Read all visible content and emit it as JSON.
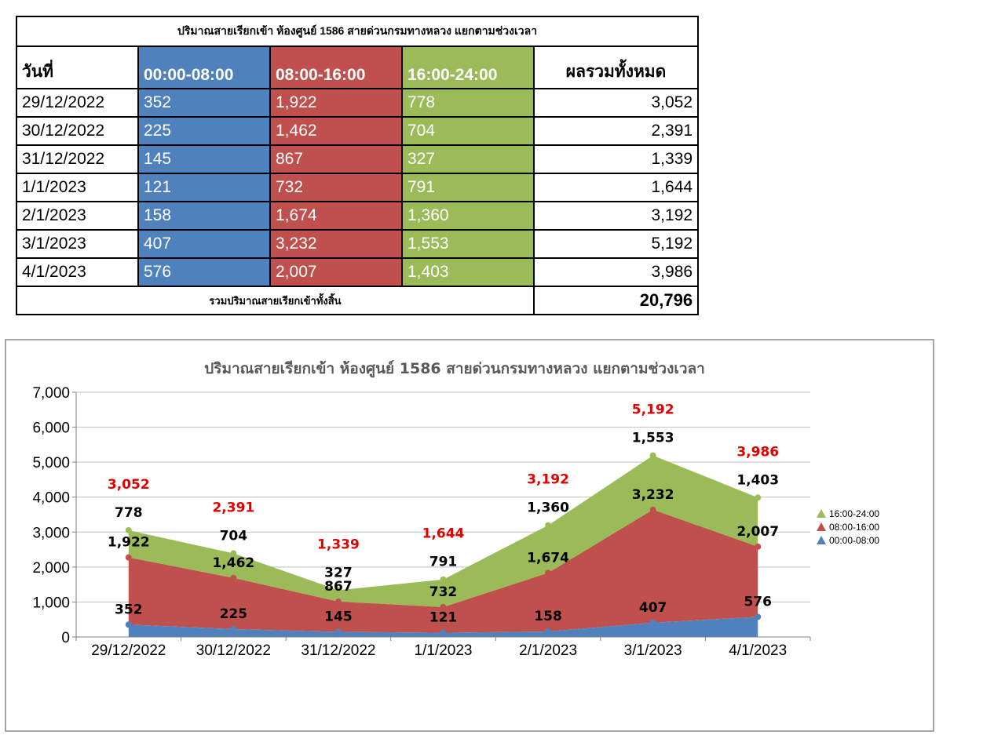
{
  "table": {
    "title": "ปริมาณสายเรียกเข้า ห้องศูนย์ 1586 สายด่วนกรมทางหลวง แยกตามช่วงเวลา",
    "headers": [
      "วันที่",
      "00:00-08:00",
      "08:00-16:00",
      "16:00-24:00",
      "ผลรวมทั้งหมด"
    ],
    "rows": [
      {
        "date": "29/12/2022",
        "s1": "352",
        "s2": "1,922",
        "s3": "778",
        "total": "3,052"
      },
      {
        "date": "30/12/2022",
        "s1": "225",
        "s2": "1,462",
        "s3": "704",
        "total": "2,391"
      },
      {
        "date": "31/12/2022",
        "s1": "145",
        "s2": "867",
        "s3": "327",
        "total": "1,339"
      },
      {
        "date": "1/1/2023",
        "s1": "121",
        "s2": "732",
        "s3": "791",
        "total": "1,644"
      },
      {
        "date": "2/1/2023",
        "s1": "158",
        "s2": "1,674",
        "s3": "1,360",
        "total": "3,192"
      },
      {
        "date": "3/1/2023",
        "s1": "407",
        "s2": "3,232",
        "s3": "1,553",
        "total": "5,192"
      },
      {
        "date": "4/1/2023",
        "s1": "576",
        "s2": "2,007",
        "s3": "1,403",
        "total": "3,986"
      }
    ],
    "total_label": "รวมปริมาณสายเรียกเข้าทั้งสิ้น",
    "grand_total": "20,796"
  },
  "chart_data": {
    "type": "area",
    "stacked": true,
    "title": "ปริมาณสายเรียกเข้า ห้องศูนย์ 1586 สายด่วนกรมทางหลวง แยกตามช่วงเวลา",
    "categories": [
      "29/12/2022",
      "30/12/2022",
      "31/12/2022",
      "1/1/2023",
      "2/1/2023",
      "3/1/2023",
      "4/1/2023"
    ],
    "series": [
      {
        "name": "00:00-08:00",
        "values": [
          352,
          225,
          145,
          121,
          158,
          407,
          576
        ],
        "color": "#4f81bd"
      },
      {
        "name": "08:00-16:00",
        "values": [
          1922,
          1462,
          867,
          732,
          1674,
          3232,
          2007
        ],
        "color": "#c0504d"
      },
      {
        "name": "16:00-24:00",
        "values": [
          778,
          704,
          327,
          791,
          1360,
          1553,
          1403
        ],
        "color": "#9bbb59"
      }
    ],
    "totals": [
      3052,
      2391,
      1339,
      1644,
      3192,
      5192,
      3986
    ],
    "total_label_color": "#e00000",
    "ylim": [
      0,
      7000
    ],
    "yticks": [
      "0",
      "1,000",
      "2,000",
      "3,000",
      "4,000",
      "5,000",
      "6,000",
      "7,000"
    ],
    "grid": true,
    "legend": "right",
    "xlabel": "",
    "ylabel": ""
  }
}
